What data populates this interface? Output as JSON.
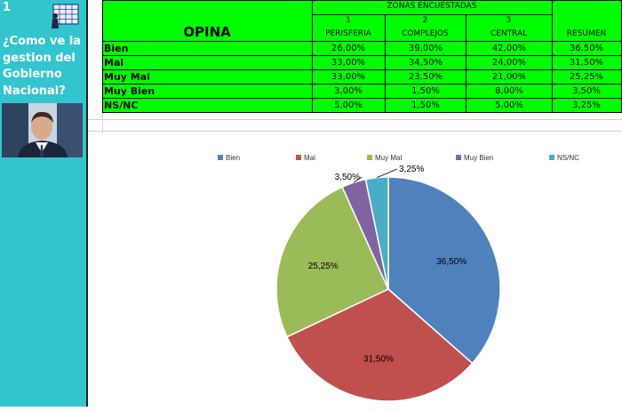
{
  "side": {
    "number": "1",
    "question_lines": [
      "¿Como ve la",
      "gestion del",
      "Gobierno",
      "Nacional?"
    ]
  },
  "table": {
    "opina_label": "OPINA",
    "zones_title": "ZONAS ENCUESTADAS",
    "zone_numbers": [
      "1",
      "2",
      "3"
    ],
    "columns": [
      "PERISFERIA",
      "COMPLEJOS",
      "CENTRAL"
    ],
    "resumen_label": "RESUMEN",
    "rows": [
      {
        "label": "Bien",
        "values": [
          "26,00%",
          "39,00%",
          "42,00%"
        ],
        "resumen": "36,50%"
      },
      {
        "label": "Mal",
        "values": [
          "33,00%",
          "34,50%",
          "24,00%"
        ],
        "resumen": "31,50%"
      },
      {
        "label": "Muy Mal",
        "values": [
          "33,00%",
          "23,50%",
          "21,00%"
        ],
        "resumen": "25,25%"
      },
      {
        "label": "Muy Bien",
        "values": [
          "3,00%",
          "1,50%",
          "8,00%"
        ],
        "resumen": "3,50%"
      },
      {
        "label": "NS/NC",
        "values": [
          "5,00%",
          "1,50%",
          "5,00%"
        ],
        "resumen": "3,25%"
      }
    ]
  },
  "chart_data": {
    "type": "pie",
    "categories": [
      "Bien",
      "Mal",
      "Muy Mal",
      "Muy Bien",
      "NS/NC"
    ],
    "values": [
      36.5,
      31.5,
      25.25,
      3.5,
      3.25
    ],
    "labels": [
      "36,50%",
      "31,50%",
      "25,25%",
      "3,50%",
      "3,25%"
    ],
    "colors": [
      "#4f81bd",
      "#c0504d",
      "#9bbb59",
      "#8064a2",
      "#4bacc6"
    ],
    "legend": "top"
  }
}
